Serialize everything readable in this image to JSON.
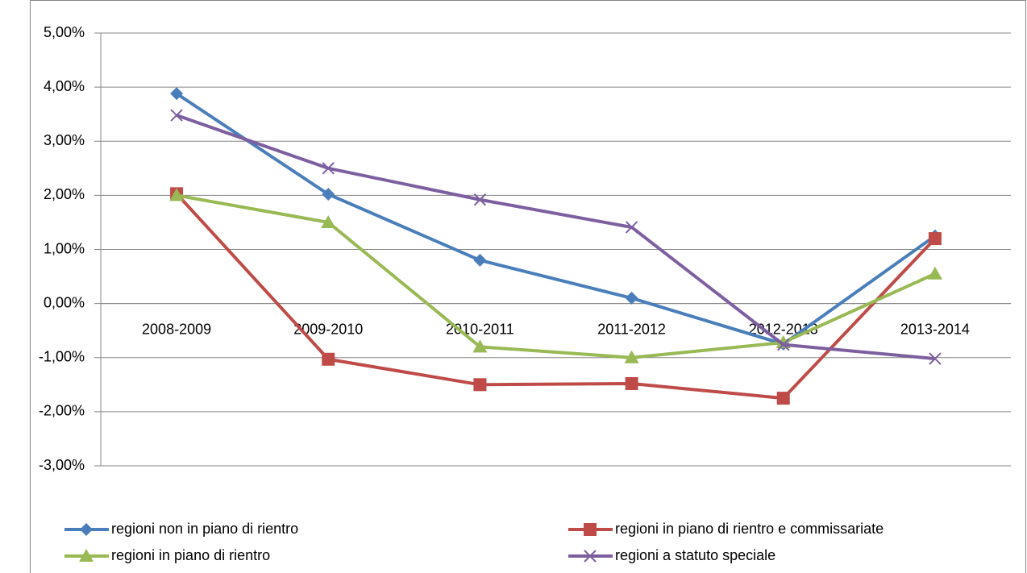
{
  "chart_data": {
    "type": "line",
    "categories": [
      "2008-2009",
      "2009-2010",
      "2010-2011",
      "2011-2012",
      "2012-2013",
      "2013-2014"
    ],
    "series": [
      {
        "name": "regioni non in piano di rientro",
        "color": "#4a7ebb",
        "marker": "diamond",
        "values": [
          3.88,
          2.02,
          0.8,
          0.1,
          -0.75,
          1.25
        ]
      },
      {
        "name": "regioni in piano di rientro e commissariate",
        "color": "#be4b48",
        "marker": "square",
        "values": [
          2.03,
          -1.03,
          -1.5,
          -1.48,
          -1.75,
          1.2
        ]
      },
      {
        "name": "regioni in piano di rientro",
        "color": "#98b954",
        "marker": "triangle",
        "values": [
          2.0,
          1.5,
          -0.8,
          -1.0,
          -0.72,
          0.55
        ]
      },
      {
        "name": "regioni a statuto speciale",
        "color": "#7d5fa0",
        "marker": "x",
        "values": [
          3.48,
          2.5,
          1.92,
          1.41,
          -0.76,
          -1.02
        ]
      }
    ],
    "ylim": [
      -3,
      5
    ],
    "yticks": [
      {
        "value": -3,
        "label": "-3,00%"
      },
      {
        "value": -2,
        "label": "-2,00%"
      },
      {
        "value": -1,
        "label": "-1,00%"
      },
      {
        "value": 0,
        "label": "0,00%"
      },
      {
        "value": 1,
        "label": "1,00%"
      },
      {
        "value": 2,
        "label": "2,00%"
      },
      {
        "value": 3,
        "label": "3,00%"
      },
      {
        "value": 4,
        "label": "4,00%"
      },
      {
        "value": 5,
        "label": "5,00%"
      }
    ],
    "grid": true,
    "legend": "bottom"
  }
}
